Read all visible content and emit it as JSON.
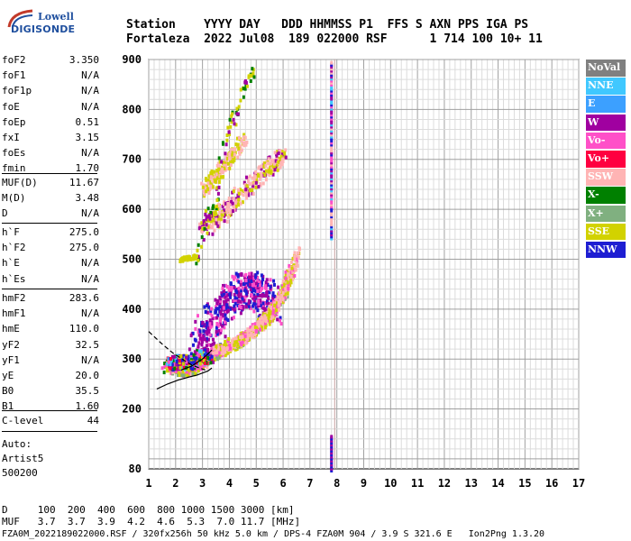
{
  "logo": {
    "line1": "Lowell",
    "line2": "DIGISONDE"
  },
  "header": {
    "row1": "Station    YYYY DAY   DDD HHMMSS P1  FFS S AXN PPS IGA PS",
    "row2": "Fortaleza  2022 Jul08  189 022000 RSF      1 714 100 10+ 11"
  },
  "params_group1": [
    {
      "label": "foF2",
      "value": "3.350"
    },
    {
      "label": "foF1",
      "value": "N/A"
    },
    {
      "label": "foF1p",
      "value": "N/A"
    },
    {
      "label": "foE",
      "value": "N/A"
    },
    {
      "label": "foEp",
      "value": "0.51"
    },
    {
      "label": "fxI",
      "value": "3.15"
    },
    {
      "label": "foEs",
      "value": "N/A"
    },
    {
      "label": "fmin",
      "value": "1.70"
    }
  ],
  "params_group2": [
    {
      "label": "MUF(D)",
      "value": "11.67"
    },
    {
      "label": "M(D)",
      "value": "3.48"
    },
    {
      "label": "D",
      "value": "N/A"
    }
  ],
  "params_group3": [
    {
      "label": "h`F",
      "value": "275.0"
    },
    {
      "label": "h`F2",
      "value": "275.0"
    },
    {
      "label": "h`E",
      "value": "N/A"
    },
    {
      "label": "h`Es",
      "value": "N/A"
    }
  ],
  "params_group4": [
    {
      "label": "hmF2",
      "value": "283.6"
    },
    {
      "label": "hmF1",
      "value": "N/A"
    },
    {
      "label": "hmE",
      "value": "110.0"
    },
    {
      "label": "yF2",
      "value": "32.5"
    },
    {
      "label": "yF1",
      "value": "N/A"
    },
    {
      "label": "yE",
      "value": "20.0"
    },
    {
      "label": "B0",
      "value": "35.5"
    },
    {
      "label": "B1",
      "value": "1.60"
    }
  ],
  "c_level": {
    "label": "C-level",
    "value": "44"
  },
  "auto": {
    "label": "Auto:",
    "name": "Artist5",
    "version": "500200"
  },
  "legend": [
    {
      "label": "NoVal",
      "color": "#808080"
    },
    {
      "label": "NNE",
      "color": "#40c8ff"
    },
    {
      "label": "E",
      "color": "#3ca0ff"
    },
    {
      "label": "W",
      "color": "#a000a0"
    },
    {
      "label": "Vo-",
      "color": "#ff50c8"
    },
    {
      "label": "Vo+",
      "color": "#ff0040"
    },
    {
      "label": "SSW",
      "color": "#ffb4b4"
    },
    {
      "label": "X-",
      "color": "#008000"
    },
    {
      "label": "X+",
      "color": "#80b080"
    },
    {
      "label": "SSE",
      "color": "#d2d200"
    },
    {
      "label": "NNW",
      "color": "#1e1ed2"
    }
  ],
  "footer": {
    "row1": "D     100  200  400  600  800 1000 1500 3000 [km]",
    "row2": "MUF   3.7  3.7  3.9  4.2  4.6  5.3  7.0 11.7 [MHz]",
    "row3": "FZA0M_2022189022000.RSF / 320fx256h 50 kHz 5.0 km / DPS-4 FZA0M 904 / 3.9 S 321.6 E   Ion2Png 1.3.20"
  },
  "chart_data": {
    "type": "scatter",
    "xlim": [
      1,
      17
    ],
    "ylim": [
      80,
      900
    ],
    "x_ticks": [
      1,
      2,
      3,
      4,
      5,
      6,
      7,
      8,
      9,
      10,
      11,
      12,
      13,
      14,
      15,
      16,
      17
    ],
    "y_ticks": [
      80,
      200,
      300,
      400,
      500,
      600,
      700,
      800,
      900
    ],
    "grid": true,
    "legend_position": "right",
    "o_trace_x": [
      1.75,
      2.0,
      2.3,
      2.6,
      2.9,
      3.1,
      3.3,
      3.5,
      3.8,
      4.1,
      4.4,
      4.7,
      5.0,
      5.3,
      5.6,
      5.9,
      6.1,
      6.3
    ],
    "o_trace_y": [
      285,
      282,
      280,
      283,
      292,
      302,
      310,
      316,
      322,
      330,
      340,
      350,
      365,
      380,
      400,
      425,
      455,
      490
    ],
    "x_trace_x": [
      3.3,
      3.6,
      3.9,
      4.2,
      4.5,
      4.8,
      5.1,
      5.4,
      5.7,
      6.0,
      6.3,
      6.5
    ],
    "x_trace_y": [
      318,
      322,
      330,
      338,
      348,
      360,
      375,
      392,
      412,
      440,
      480,
      520
    ],
    "w_cloud_x": [
      2.8,
      3.2,
      3.6,
      4.0,
      4.4,
      4.8,
      5.2,
      5.6
    ],
    "w_cloud_y": [
      330,
      360,
      395,
      420,
      440,
      445,
      430,
      405
    ],
    "multihop_x": [
      2.9,
      3.3,
      3.7,
      4.1,
      4.5,
      4.9,
      5.3,
      5.7,
      6.0
    ],
    "multihop_y": [
      560,
      575,
      595,
      615,
      640,
      660,
      680,
      700,
      710
    ],
    "ssw_high_x": [
      3.0,
      3.3,
      3.6,
      3.9,
      4.2,
      4.5
    ],
    "ssw_high_y": [
      640,
      660,
      680,
      700,
      720,
      745
    ],
    "sse_patches_x": [
      2.8,
      3.1,
      3.4,
      3.7,
      4.0,
      4.3,
      4.6,
      4.9
    ],
    "sse_patches_y": [
      500,
      590,
      600,
      720,
      770,
      810,
      860,
      880
    ],
    "spike_x": 7.75,
    "spike_y_range": [
      545,
      900
    ],
    "spike_low_y_range": [
      80,
      150
    ],
    "profile_x": [
      1.3,
      1.7,
      2.1,
      2.5,
      2.8,
      3.0,
      3.2,
      3.35
    ],
    "profile_y": [
      240,
      250,
      258,
      264,
      268,
      272,
      276,
      282
    ],
    "profile_upper_x": [
      1.0,
      1.5,
      1.9,
      2.3,
      2.6,
      2.9,
      3.1
    ],
    "profile_upper_y": [
      355,
      330,
      312,
      298,
      288,
      282,
      278
    ]
  }
}
